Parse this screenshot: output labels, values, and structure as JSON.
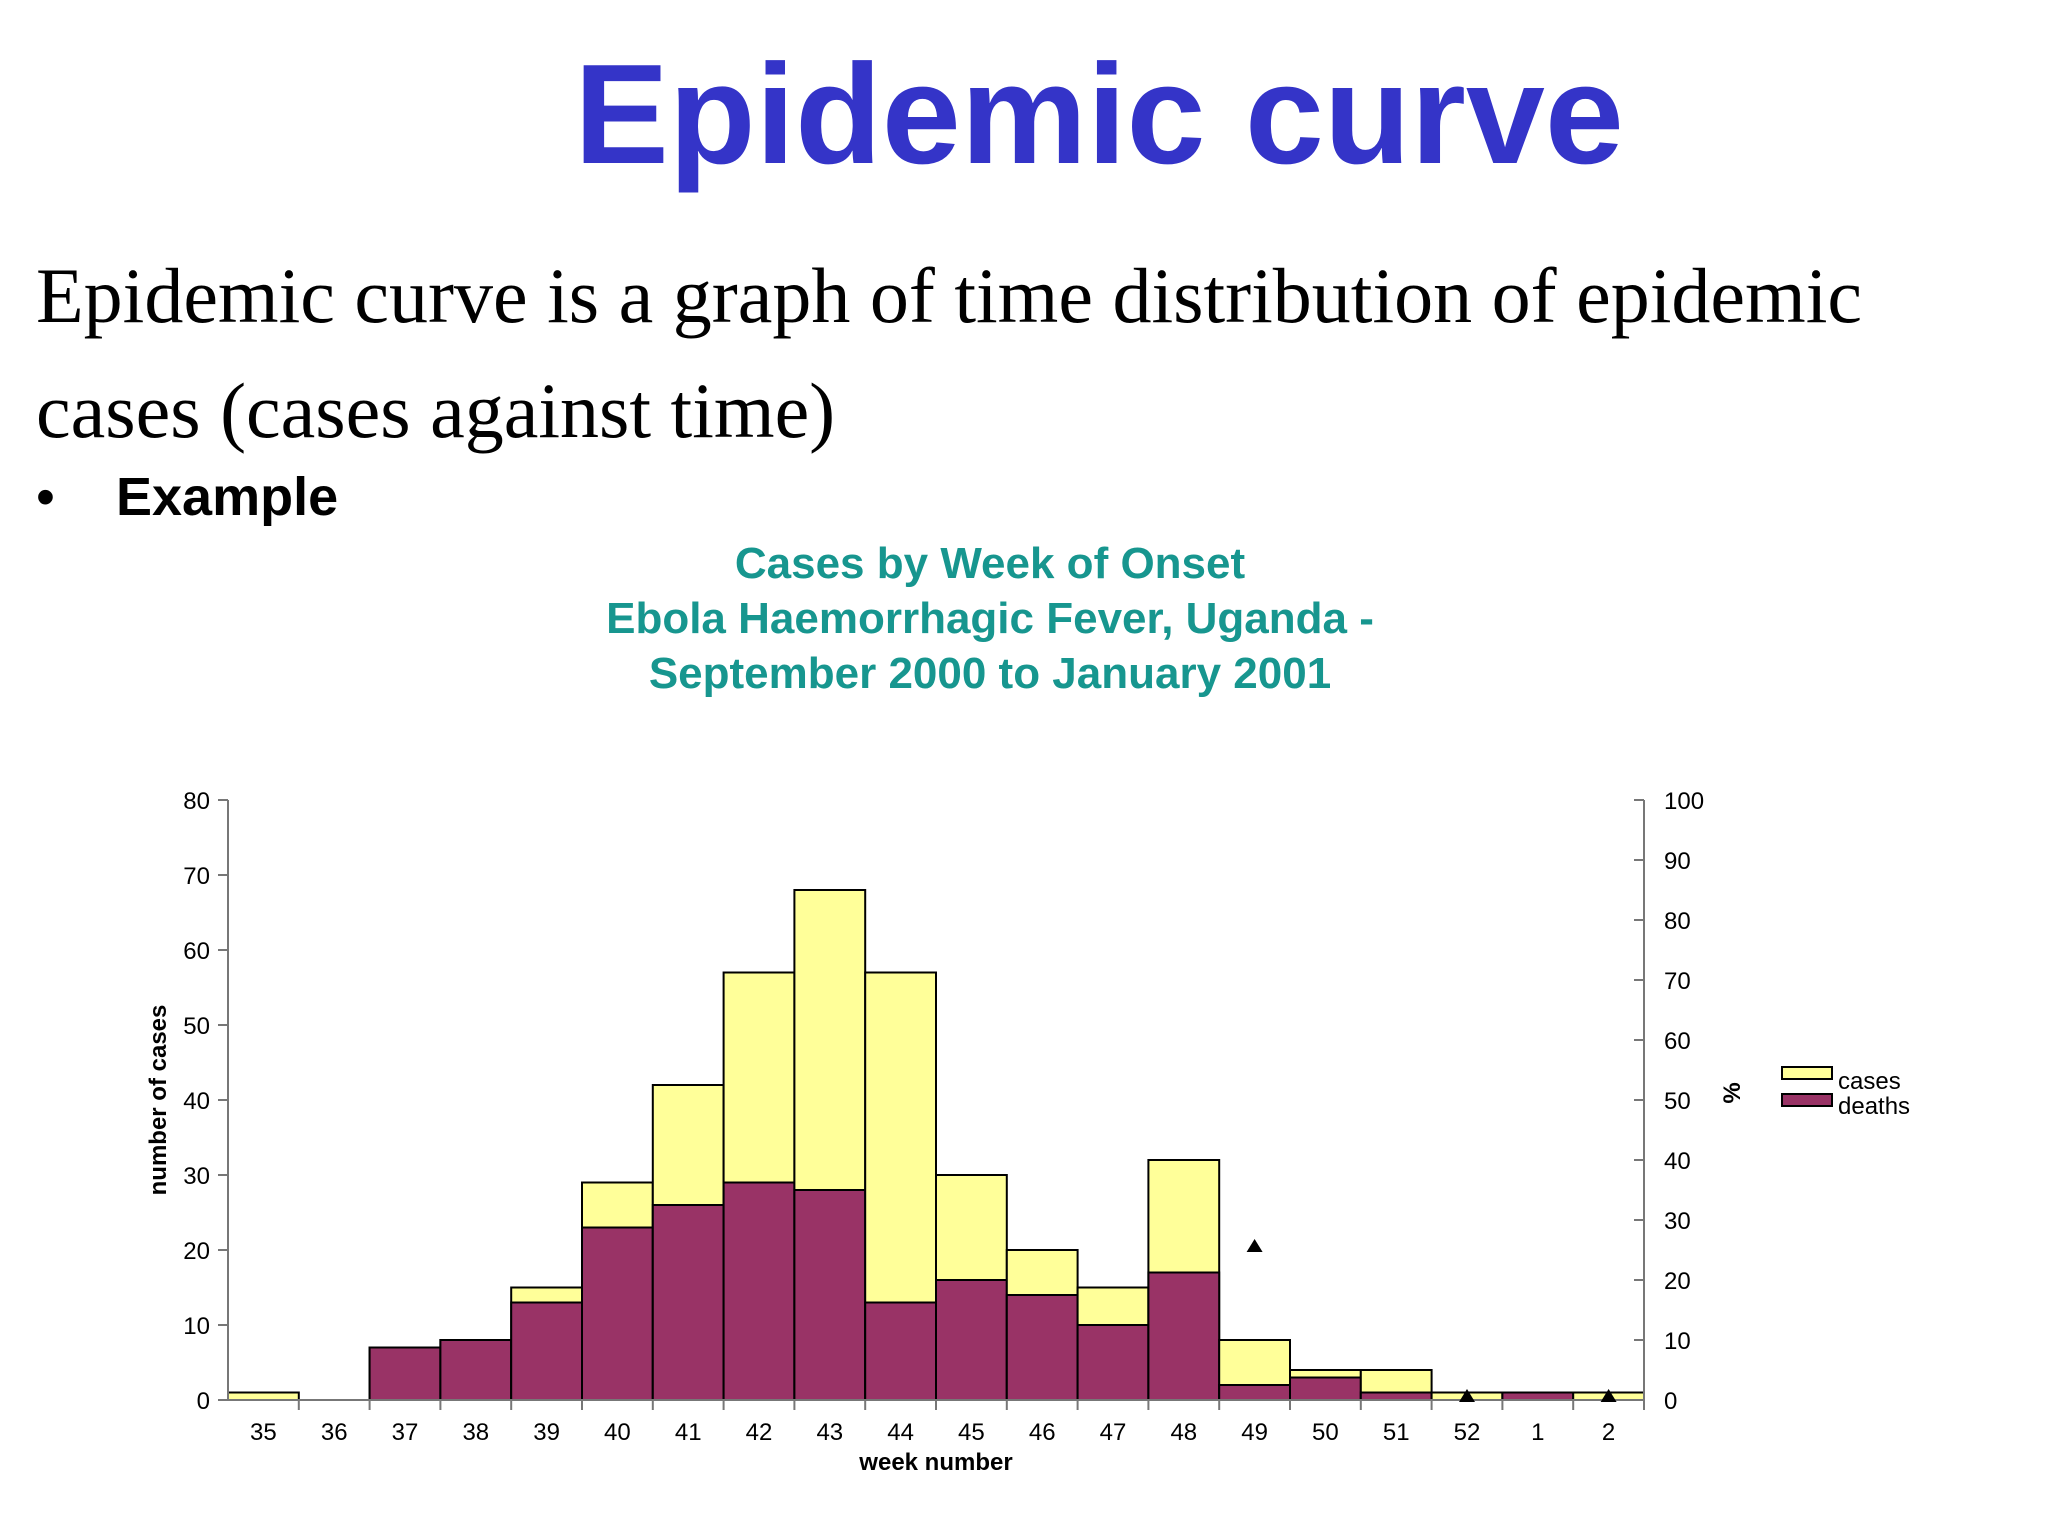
{
  "slide": {
    "title": "Epidemic curve",
    "description_line1": "Epidemic curve is a graph of time distribution of epidemic",
    "description_line2": "cases (cases against time)",
    "bullet_symbol": "•",
    "bullet_label": "Example"
  },
  "chart_data": {
    "type": "bar",
    "title_lines": [
      "Cases by Week of Onset",
      "Ebola Haemorrhagic Fever, Uganda -",
      "September 2000 to January 2001"
    ],
    "xlabel": "week number",
    "ylabel": "number of cases",
    "y2label": "%",
    "categories": [
      "35",
      "36",
      "37",
      "38",
      "39",
      "40",
      "41",
      "42",
      "43",
      "44",
      "45",
      "46",
      "47",
      "48",
      "49",
      "50",
      "51",
      "52",
      "1",
      "2"
    ],
    "series": [
      {
        "name": "cases",
        "color": "#ffff99",
        "values": [
          1,
          0,
          7,
          8,
          15,
          29,
          42,
          57,
          68,
          57,
          30,
          20,
          15,
          32,
          8,
          4,
          4,
          1,
          1,
          1
        ]
      },
      {
        "name": "deaths",
        "color": "#993366",
        "values": [
          0,
          0,
          7,
          8,
          13,
          23,
          26,
          29,
          28,
          13,
          16,
          14,
          10,
          17,
          2,
          3,
          1,
          0,
          1,
          0
        ]
      }
    ],
    "ylim": [
      0,
      80
    ],
    "yticks": [
      0,
      10,
      20,
      30,
      40,
      50,
      60,
      70,
      80
    ],
    "y2lim": [
      0,
      100
    ],
    "y2ticks": [
      0,
      10,
      20,
      30,
      40,
      50,
      60,
      70,
      80,
      90,
      100
    ],
    "markers": [
      {
        "category": "49",
        "y2": 25
      },
      {
        "category": "52",
        "y2": 0
      },
      {
        "category": "2",
        "y2": 0
      }
    ],
    "legend_position": "right",
    "grid": false
  }
}
